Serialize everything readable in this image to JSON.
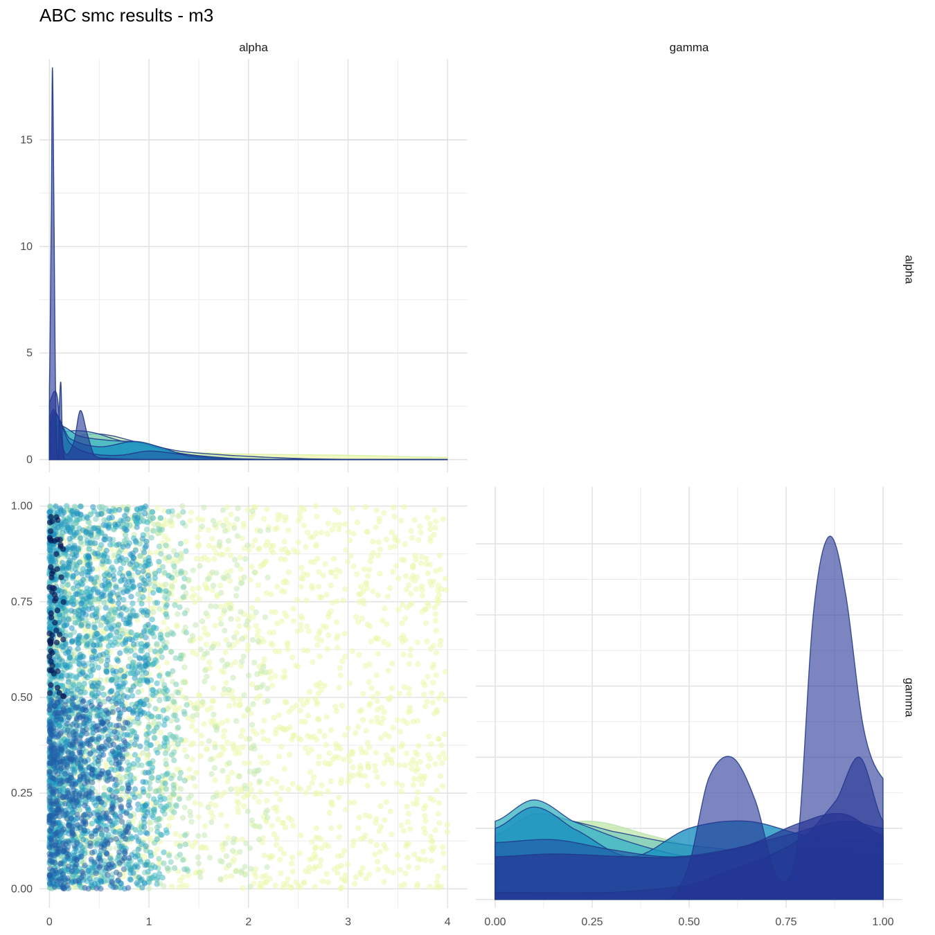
{
  "chart_data": {
    "type": "pairs",
    "title": "ABC smc results - m3",
    "variables": [
      "alpha",
      "gamma"
    ],
    "series_colors": [
      "#edf8b1",
      "#c7e9b4",
      "#7fcdbb",
      "#41b6c4",
      "#1d91c0",
      "#225ea8",
      "#253494",
      "#081d58"
    ],
    "panels": {
      "alpha_density": {
        "type": "area",
        "xlim": [
          -0.1,
          4.2
        ],
        "ylim": [
          -0.6,
          18.8
        ],
        "x_ticks": [
          0,
          1,
          2,
          3,
          4
        ],
        "y_ticks": [
          0,
          5,
          10,
          15
        ],
        "y_tick_labels": [
          "0",
          "5",
          "10",
          "15"
        ],
        "series": [
          {
            "color": "#edf8b1",
            "alpha": 0.8,
            "x": [
              0,
              0.2,
              0.5,
              1,
              1.5,
              2,
              3,
              4
            ],
            "y": [
              0.3,
              0.7,
              0.6,
              0.45,
              0.32,
              0.25,
              0.2,
              0.1
            ]
          },
          {
            "color": "#c7e9b4",
            "alpha": 0.8,
            "x": [
              0,
              0.2,
              0.5,
              0.9,
              1.3,
              1.8,
              2.5,
              3,
              4
            ],
            "y": [
              0.5,
              1.0,
              1.2,
              0.8,
              0.4,
              0.2,
              0.05,
              0.01,
              0
            ]
          },
          {
            "color": "#7fcdbb",
            "alpha": 0.8,
            "x": [
              0,
              0.15,
              0.4,
              0.7,
              1.0,
              1.3,
              1.7,
              2.2,
              4
            ],
            "y": [
              0.8,
              1.3,
              1.3,
              0.9,
              0.6,
              0.3,
              0.08,
              0.01,
              0
            ]
          },
          {
            "color": "#41b6c4",
            "alpha": 0.8,
            "x": [
              0,
              0.1,
              0.3,
              0.6,
              0.9,
              1.2,
              1.6,
              2,
              4
            ],
            "y": [
              1.2,
              1.6,
              1.1,
              0.9,
              0.8,
              0.4,
              0.08,
              0.01,
              0
            ]
          },
          {
            "color": "#1d91c0",
            "alpha": 0.8,
            "x": [
              0,
              0.05,
              0.2,
              0.5,
              0.85,
              1.1,
              1.4,
              2,
              4
            ],
            "y": [
              1.6,
              2.2,
              1.0,
              0.6,
              0.85,
              0.6,
              0.15,
              0.01,
              0
            ]
          },
          {
            "color": "#225ea8",
            "alpha": 0.6,
            "x": [
              0,
              0.05,
              0.2,
              0.4,
              0.7,
              1.0,
              1.3,
              2,
              4
            ],
            "y": [
              2.0,
              2.3,
              0.8,
              0.3,
              0.2,
              0.4,
              0.25,
              0.01,
              0
            ]
          },
          {
            "color": "#253494",
            "alpha": 0.6,
            "x": [
              0,
              0.05,
              0.08,
              0.11,
              0.14,
              0.18,
              0.25,
              0.31,
              0.38,
              0.45,
              0.6,
              1.0,
              4
            ],
            "y": [
              2.7,
              3.2,
              2.9,
              1.4,
              0.5,
              0.25,
              0.9,
              2.3,
              1.2,
              0.2,
              0.05,
              0.0,
              0
            ]
          },
          {
            "color": "#253494",
            "alpha": 0.6,
            "x": [
              0,
              0.02,
              0.03,
              0.045,
              0.06,
              0.075,
              0.09,
              0.1,
              0.115,
              0.13,
              0.15,
              0.2,
              4
            ],
            "y": [
              3.4,
              12,
              18.4,
              12,
              3.8,
              0.5,
              0.2,
              2.5,
              3.6,
              1.0,
              0.05,
              0,
              0
            ]
          }
        ]
      },
      "scatter": {
        "type": "scatter",
        "x_variable": "alpha",
        "y_variable": "gamma",
        "xlim": [
          -0.1,
          4.2
        ],
        "ylim": [
          -0.05,
          1.05
        ],
        "x_ticks": [
          0,
          1,
          2,
          3,
          4
        ],
        "x_tick_labels": [
          "0",
          "1",
          "2",
          "3",
          "4"
        ],
        "y_ticks": [
          0,
          0.25,
          0.5,
          0.75,
          1.0
        ],
        "y_tick_labels": [
          "0.00",
          "0.25",
          "0.50",
          "0.75",
          "1.00"
        ],
        "series": [
          {
            "color": "#edf8b1",
            "alpha_range": [
              0,
              4
            ],
            "gamma_range": [
              0,
              1
            ]
          },
          {
            "color": "#c7e9b4",
            "alpha_range": [
              0,
              2.2
            ],
            "gamma_range": [
              0,
              1
            ]
          },
          {
            "color": "#7fcdbb",
            "alpha_range": [
              0,
              1.4
            ],
            "gamma_range": [
              0,
              1
            ]
          },
          {
            "color": "#41b6c4",
            "alpha_range": [
              0,
              1.2
            ],
            "gamma_range": [
              0,
              1
            ]
          },
          {
            "color": "#1d91c0",
            "alpha_range": [
              0,
              1.0
            ],
            "gamma_range": [
              0,
              1
            ]
          },
          {
            "color": "#225ea8",
            "alpha_range": [
              0,
              0.8
            ],
            "gamma_range": [
              0,
              0.5
            ]
          },
          {
            "color": "#081d58",
            "alpha_range": [
              0,
              0.15
            ],
            "gamma_range": [
              0.5,
              1
            ]
          }
        ]
      },
      "gamma_density": {
        "type": "area",
        "xlim": [
          -0.05,
          1.05
        ],
        "ylim": [
          -0.06,
          2.9
        ],
        "x_ticks": [
          0,
          0.25,
          0.5,
          0.75,
          1.0
        ],
        "x_tick_labels": [
          "0.00",
          "0.25",
          "0.50",
          "0.75",
          "1.00"
        ],
        "y_ticks": [
          0,
          0.5,
          1,
          1.5,
          2,
          2.5
        ],
        "series": [
          {
            "color": "#c7e9b4",
            "alpha": 0.85,
            "x": [
              0,
              0.1,
              0.25,
              0.4,
              0.55,
              0.7,
              0.85,
              1.0
            ],
            "y": [
              0.45,
              0.5,
              0.55,
              0.45,
              0.35,
              0.3,
              0.25,
              0.2
            ]
          },
          {
            "color": "#7fcdbb",
            "alpha": 0.8,
            "x": [
              0,
              0.1,
              0.2,
              0.3,
              0.45,
              0.6,
              0.75,
              0.9,
              1.0
            ],
            "y": [
              0.45,
              0.6,
              0.55,
              0.48,
              0.4,
              0.35,
              0.3,
              0.25,
              0.2
            ]
          },
          {
            "color": "#41b6c4",
            "alpha": 0.8,
            "x": [
              0,
              0.1,
              0.2,
              0.35,
              0.5,
              0.7,
              0.85,
              1.0
            ],
            "y": [
              0.55,
              0.7,
              0.55,
              0.4,
              0.3,
              0.3,
              0.35,
              0.3
            ]
          },
          {
            "color": "#1d91c0",
            "alpha": 0.8,
            "x": [
              0,
              0.1,
              0.2,
              0.35,
              0.5,
              0.65,
              0.8,
              1.0
            ],
            "y": [
              0.5,
              0.65,
              0.5,
              0.3,
              0.5,
              0.55,
              0.45,
              0.4
            ]
          },
          {
            "color": "#225ea8",
            "alpha": 0.7,
            "x": [
              0,
              0.15,
              0.3,
              0.45,
              0.6,
              0.75,
              0.9,
              1.0
            ],
            "y": [
              0.4,
              0.42,
              0.35,
              0.3,
              0.35,
              0.45,
              0.55,
              0.5
            ]
          },
          {
            "color": "#253494",
            "alpha": 0.7,
            "x": [
              0,
              0.15,
              0.35,
              0.5,
              0.65,
              0.8,
              0.9,
              1.0
            ],
            "y": [
              0.3,
              0.32,
              0.3,
              0.3,
              0.38,
              0.55,
              0.6,
              0.45
            ]
          },
          {
            "color": "#253494",
            "alpha": 0.6,
            "x": [
              0,
              0.3,
              0.5,
              0.6,
              0.7,
              0.8,
              0.88,
              0.94,
              1.0
            ],
            "y": [
              0.05,
              0.05,
              0.1,
              0.2,
              0.3,
              0.45,
              0.7,
              1.0,
              0.55
            ]
          },
          {
            "color": "#253494",
            "alpha": 0.6,
            "x": [
              0,
              0.45,
              0.5,
              0.55,
              0.61,
              0.67,
              0.73,
              0.78,
              0.82,
              0.86,
              0.9,
              0.95,
              1.0
            ],
            "y": [
              0,
              0,
              0.25,
              0.85,
              1.0,
              0.7,
              0.15,
              0.4,
              2.0,
              2.55,
              2.2,
              1.2,
              0.85
            ]
          }
        ]
      }
    }
  }
}
